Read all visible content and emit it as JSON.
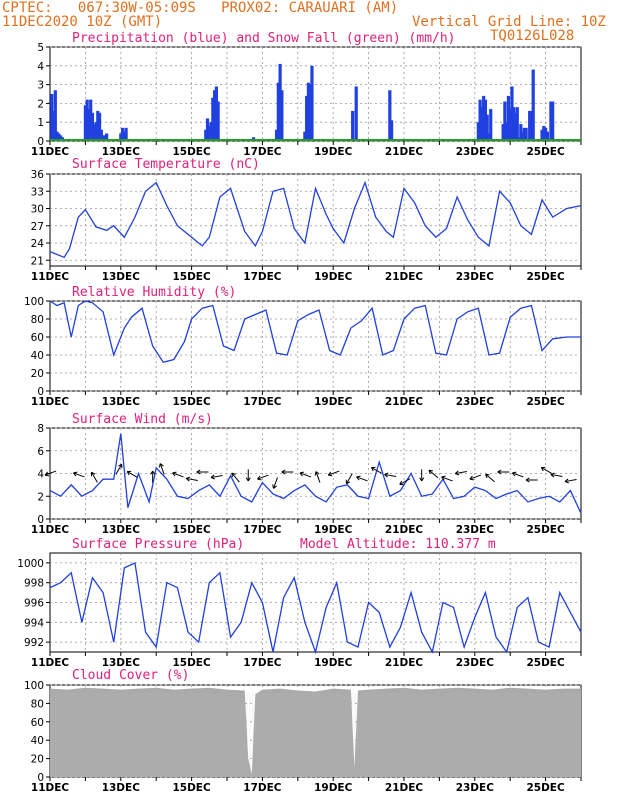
{
  "header": {
    "line1": "CPTEC:   067:30W-05:09S   PROX02: CARAUARI (AM)",
    "line2": "11DEC2020 10Z (GMT)",
    "vertical_grid": "Vertical Grid Line: 10Z",
    "code": "TQ0126L028",
    "model_altitude": "Model Altitude: 110.377 m"
  },
  "colors": {
    "header": "#e07020",
    "title": "#e0207a",
    "line": "#2040e0",
    "bar": "#2040e0",
    "snow": "#20a020",
    "cloud": "#aaaaaa"
  },
  "x_ticks": [
    "11DEC",
    "13DEC",
    "15DEC",
    "17DEC",
    "19DEC",
    "21DEC",
    "23DEC",
    "25DEC"
  ],
  "chart_data": [
    {
      "type": "bar",
      "title": "Precipitation (blue) and Snow Fall (green) (mm/h)",
      "ylim": [
        0,
        5
      ],
      "yticks": [
        0,
        1,
        2,
        3,
        4,
        5
      ],
      "x_unit": "days since 11DEC 00Z",
      "series": [
        {
          "name": "Precipitation",
          "x": [
            0.05,
            0.1,
            0.15,
            0.2,
            0.25,
            0.3,
            0.35,
            0.45,
            0.6,
            0.75,
            1.0,
            1.05,
            1.1,
            1.15,
            1.2,
            1.25,
            1.3,
            1.35,
            1.4,
            1.45,
            1.5,
            1.55,
            1.6,
            1.85,
            2.0,
            2.05,
            2.1,
            2.15,
            4.4,
            4.45,
            4.5,
            4.55,
            4.6,
            4.65,
            4.7,
            4.75,
            5.75,
            5.8,
            5.85,
            5.9,
            6.4,
            6.45,
            6.5,
            6.55,
            7.15,
            7.2,
            7.25,
            7.3,
            7.35,
            7.4,
            8.55,
            8.65,
            9.6,
            9.65,
            12.1,
            12.15,
            12.2,
            12.25,
            12.3,
            12.35,
            12.4,
            12.45,
            12.8,
            12.85,
            12.9,
            12.95,
            13.0,
            13.05,
            13.1,
            13.15,
            13.2,
            13.25,
            13.3,
            13.35,
            13.4,
            13.45,
            13.55,
            13.6,
            13.65,
            13.9,
            13.95,
            14.0,
            14.05,
            14.15,
            14.2
          ],
          "values": [
            2.5,
            1.6,
            2.7,
            0.5,
            0.4,
            0.3,
            0.2,
            0.1,
            0.1,
            0.1,
            1.9,
            2.2,
            1.7,
            2.2,
            1.5,
            0.9,
            1.0,
            1.6,
            1.5,
            0.6,
            0.3,
            0.3,
            0.4,
            0.1,
            0.4,
            0.7,
            0.5,
            0.7,
            0.6,
            1.2,
            0.8,
            1.0,
            2.3,
            2.7,
            2.9,
            2.1,
            0.2,
            0.1,
            0.1,
            0.1,
            0.6,
            3.1,
            4.1,
            2.7,
            0.1,
            0.5,
            2.4,
            3.1,
            3.0,
            4.0,
            1.6,
            2.9,
            2.7,
            1.1,
            1.0,
            2.2,
            1.8,
            2.4,
            2.2,
            1.4,
            0.4,
            1.7,
            0.9,
            2.1,
            1.0,
            2.4,
            1.7,
            2.9,
            1.8,
            1.5,
            1.8,
            0.2,
            0.9,
            0.5,
            0.7,
            0.7,
            1.6,
            1.6,
            3.8,
            0.6,
            0.8,
            0.7,
            0.5,
            2.1,
            2.1
          ]
        },
        {
          "name": "Snow Fall",
          "values": [
            0
          ]
        }
      ]
    },
    {
      "type": "line",
      "title": "Surface Temperature (nC)",
      "ylim": [
        20,
        36
      ],
      "yticks": [
        21,
        24,
        27,
        30,
        33,
        36
      ],
      "x": [
        0,
        0.4,
        0.55,
        0.8,
        1.0,
        1.3,
        1.6,
        1.8,
        2.1,
        2.4,
        2.7,
        3.0,
        3.3,
        3.6,
        3.8,
        4.0,
        4.3,
        4.5,
        4.8,
        5.1,
        5.5,
        5.8,
        6.0,
        6.3,
        6.6,
        6.9,
        7.2,
        7.5,
        7.8,
        8.0,
        8.3,
        8.6,
        8.9,
        9.2,
        9.5,
        9.7,
        10.0,
        10.3,
        10.6,
        10.9,
        11.2,
        11.5,
        11.8,
        12.1,
        12.4,
        12.7,
        13.0,
        13.3,
        13.6,
        13.9,
        14.2,
        14.6,
        15.0
      ],
      "values": [
        22.5,
        21.5,
        23.0,
        28.5,
        29.8,
        26.8,
        26.2,
        27.0,
        25.0,
        28.5,
        33.0,
        34.5,
        30.5,
        27.0,
        26.0,
        25.0,
        23.5,
        25.0,
        32.0,
        33.5,
        26.0,
        23.5,
        26.0,
        33.0,
        33.5,
        26.5,
        24.0,
        33.5,
        29.0,
        26.5,
        24.0,
        30.0,
        34.5,
        28.5,
        26.0,
        25.0,
        33.5,
        31.0,
        27.0,
        25.0,
        26.5,
        32.0,
        28.0,
        25.0,
        23.5,
        33.0,
        31.0,
        27.0,
        25.5,
        31.5,
        28.5,
        30.0,
        30.5
      ]
    },
    {
      "type": "line",
      "title": "Relative Humidity (%)",
      "ylim": [
        0,
        100
      ],
      "yticks": [
        0,
        20,
        40,
        60,
        80,
        100
      ],
      "x": [
        0,
        0.2,
        0.4,
        0.6,
        0.8,
        1.0,
        1.2,
        1.5,
        1.8,
        2.1,
        2.3,
        2.6,
        2.9,
        3.2,
        3.5,
        3.8,
        4.0,
        4.3,
        4.6,
        4.9,
        5.2,
        5.5,
        5.8,
        6.1,
        6.4,
        6.7,
        7.0,
        7.3,
        7.6,
        7.9,
        8.2,
        8.5,
        8.8,
        9.1,
        9.4,
        9.7,
        10.0,
        10.3,
        10.6,
        10.9,
        11.2,
        11.5,
        11.8,
        12.1,
        12.4,
        12.7,
        13.0,
        13.3,
        13.6,
        13.9,
        14.2,
        14.6,
        15.0
      ],
      "values": [
        100,
        95,
        98,
        60,
        95,
        100,
        98,
        88,
        40,
        70,
        82,
        92,
        50,
        32,
        35,
        55,
        80,
        92,
        95,
        50,
        45,
        80,
        85,
        90,
        42,
        40,
        78,
        85,
        90,
        45,
        40,
        70,
        78,
        92,
        40,
        45,
        80,
        92,
        95,
        42,
        40,
        80,
        88,
        92,
        40,
        42,
        82,
        92,
        95,
        45,
        58,
        60,
        60
      ]
    },
    {
      "type": "line",
      "title": "Surface Wind (m/s)",
      "ylim": [
        0,
        8
      ],
      "yticks": [
        0,
        2,
        4,
        6,
        8
      ],
      "x": [
        0,
        0.3,
        0.6,
        0.9,
        1.2,
        1.5,
        1.8,
        2.0,
        2.2,
        2.5,
        2.8,
        3.0,
        3.3,
        3.6,
        3.9,
        4.2,
        4.5,
        4.8,
        5.1,
        5.4,
        5.7,
        6.0,
        6.3,
        6.6,
        6.9,
        7.2,
        7.5,
        7.8,
        8.1,
        8.4,
        8.7,
        9.0,
        9.3,
        9.6,
        9.9,
        10.2,
        10.5,
        10.8,
        11.1,
        11.4,
        11.7,
        12.0,
        12.3,
        12.6,
        12.9,
        13.2,
        13.5,
        13.8,
        14.1,
        14.4,
        14.7,
        15.0
      ],
      "values": [
        2.5,
        2.0,
        3.0,
        2.0,
        2.5,
        3.5,
        3.5,
        7.5,
        1.0,
        4.0,
        1.5,
        4.5,
        3.5,
        2.0,
        1.8,
        2.5,
        3.0,
        2.0,
        3.8,
        2.0,
        1.5,
        3.2,
        2.2,
        1.8,
        2.5,
        3.0,
        2.0,
        1.5,
        2.8,
        3.0,
        2.0,
        1.8,
        5.0,
        2.0,
        2.5,
        4.0,
        2.0,
        2.2,
        3.5,
        1.8,
        2.0,
        2.8,
        2.5,
        1.8,
        2.2,
        2.5,
        1.5,
        1.8,
        2.0,
        1.5,
        2.5,
        0.5
      ]
    },
    {
      "type": "line",
      "title": "Surface Pressure (hPa)",
      "ylim": [
        991,
        1001
      ],
      "yticks": [
        992,
        994,
        996,
        998,
        1000
      ],
      "x": [
        0,
        0.3,
        0.6,
        0.9,
        1.2,
        1.5,
        1.8,
        2.1,
        2.4,
        2.7,
        3.0,
        3.3,
        3.6,
        3.9,
        4.2,
        4.5,
        4.8,
        5.1,
        5.4,
        5.7,
        6.0,
        6.3,
        6.6,
        6.9,
        7.2,
        7.5,
        7.8,
        8.1,
        8.4,
        8.7,
        9.0,
        9.3,
        9.6,
        9.9,
        10.2,
        10.5,
        10.8,
        11.1,
        11.4,
        11.7,
        12.0,
        12.3,
        12.6,
        12.9,
        13.2,
        13.5,
        13.8,
        14.1,
        14.4,
        14.7,
        15.0
      ],
      "values": [
        997.5,
        998.0,
        999.0,
        994.0,
        998.5,
        997.0,
        992.0,
        999.5,
        1000.0,
        993.0,
        991.5,
        998.0,
        997.5,
        993.0,
        992.0,
        998.0,
        999.0,
        992.5,
        994.0,
        998.0,
        996.0,
        991.0,
        996.5,
        998.5,
        994.0,
        991.0,
        995.5,
        998.0,
        992.0,
        991.5,
        996.0,
        995.0,
        991.5,
        993.5,
        997.0,
        993.0,
        991.0,
        996.0,
        995.5,
        991.5,
        994.5,
        997.0,
        992.5,
        991.0,
        995.5,
        996.5,
        992.0,
        991.5,
        997.0,
        995.0,
        993.0
      ]
    },
    {
      "type": "area",
      "title": "Cloud Cover (%)",
      "ylim": [
        0,
        100
      ],
      "yticks": [
        0,
        20,
        40,
        60,
        80,
        100
      ],
      "x": [
        0,
        0.5,
        1.0,
        1.5,
        2.0,
        2.5,
        3.0,
        3.5,
        4.0,
        4.5,
        5.0,
        5.5,
        5.6,
        5.7,
        5.8,
        6.0,
        6.5,
        7.0,
        7.5,
        8.0,
        8.5,
        8.6,
        8.7,
        9.0,
        9.5,
        10.0,
        10.5,
        11.0,
        11.5,
        12.0,
        12.5,
        13.0,
        13.5,
        14.0,
        14.5,
        15.0
      ],
      "values": [
        96,
        95,
        97,
        96,
        95,
        96,
        97,
        95,
        96,
        97,
        95,
        94,
        20,
        3,
        90,
        95,
        96,
        94,
        93,
        96,
        95,
        10,
        94,
        95,
        96,
        97,
        95,
        96,
        97,
        96,
        95,
        97,
        96,
        95,
        96,
        96
      ]
    }
  ],
  "wind_arrows": {
    "x": [
      0.1,
      0.9,
      1.3,
      1.9,
      2.4,
      2.9,
      3.2,
      3.7,
      4.1,
      4.4,
      4.8,
      5.3,
      5.6,
      6.1,
      6.4,
      6.8,
      7.3,
      7.6,
      8.1,
      8.5,
      8.9,
      9.3,
      9.7,
      10.1,
      10.5,
      10.9,
      11.3,
      11.7,
      12.1,
      12.5,
      12.9,
      13.3,
      13.7,
      14.1,
      14.4,
      14.8
    ],
    "dir_deg": [
      160,
      200,
      240,
      300,
      210,
      270,
      250,
      200,
      190,
      180,
      170,
      230,
      90,
      160,
      110,
      180,
      200,
      250,
      160,
      120,
      200,
      210,
      190,
      150,
      90,
      220,
      200,
      170,
      160,
      220,
      180,
      200,
      180,
      210,
      190,
      170
    ]
  }
}
